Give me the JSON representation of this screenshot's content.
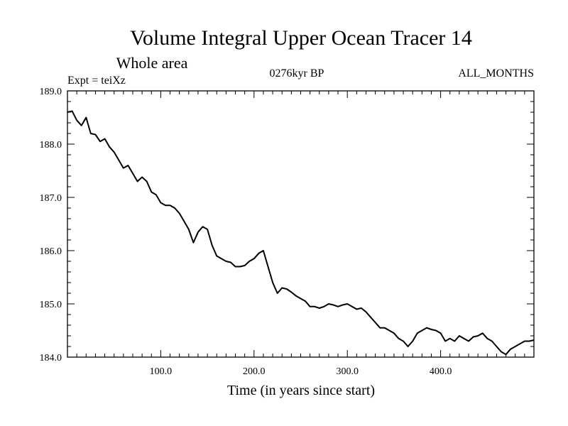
{
  "chart_data": {
    "type": "line",
    "title": "Volume Integral Upper Ocean Tracer 14",
    "subtitle": "Whole area",
    "annotations": {
      "left": "Expt = teiXz",
      "center": "0276kyr BP",
      "right": "ALL_MONTHS"
    },
    "xlabel": "Time (in years since start)",
    "ylabel": "",
    "xlim": [
      0,
      500
    ],
    "ylim": [
      184.0,
      189.0
    ],
    "x_ticks": [
      100,
      200,
      300,
      400
    ],
    "x_tick_labels": [
      "100.0",
      "200.0",
      "300.0",
      "400.0"
    ],
    "y_ticks": [
      184,
      185,
      186,
      187,
      188,
      189
    ],
    "y_tick_labels": [
      "184.0",
      "185.0",
      "186.0",
      "187.0",
      "188.0",
      "189.0"
    ],
    "grid": false,
    "series": [
      {
        "x": [
          0,
          5,
          10,
          15,
          20,
          25,
          30,
          35,
          40,
          45,
          50,
          55,
          60,
          65,
          70,
          75,
          80,
          85,
          90,
          95,
          100,
          105,
          110,
          115,
          120,
          125,
          130,
          135,
          140,
          145,
          150,
          155,
          160,
          165,
          170,
          175,
          180,
          185,
          190,
          195,
          200,
          205,
          210,
          215,
          220,
          225,
          230,
          235,
          240,
          245,
          250,
          255,
          260,
          265,
          270,
          275,
          280,
          285,
          290,
          295,
          300,
          305,
          310,
          315,
          320,
          325,
          330,
          335,
          340,
          345,
          350,
          355,
          360,
          365,
          370,
          375,
          380,
          385,
          390,
          395,
          400,
          405,
          410,
          415,
          420,
          425,
          430,
          435,
          440,
          445,
          450,
          455,
          460,
          465,
          470,
          475,
          480,
          485,
          490,
          495,
          500
        ],
        "y": [
          188.6,
          188.62,
          188.45,
          188.35,
          188.5,
          188.2,
          188.18,
          188.05,
          188.1,
          187.95,
          187.85,
          187.7,
          187.55,
          187.6,
          187.45,
          187.3,
          187.38,
          187.3,
          187.1,
          187.05,
          186.9,
          186.85,
          186.85,
          186.8,
          186.7,
          186.55,
          186.4,
          186.15,
          186.35,
          186.45,
          186.4,
          186.1,
          185.9,
          185.85,
          185.8,
          185.78,
          185.7,
          185.7,
          185.72,
          185.8,
          185.85,
          185.95,
          186.0,
          185.7,
          185.4,
          185.2,
          185.3,
          185.28,
          185.22,
          185.15,
          185.1,
          185.05,
          184.95,
          184.95,
          184.92,
          184.95,
          185.0,
          184.98,
          184.95,
          184.98,
          185.0,
          184.95,
          184.9,
          184.92,
          184.85,
          184.75,
          184.65,
          184.55,
          184.55,
          184.5,
          184.45,
          184.35,
          184.3,
          184.2,
          184.3,
          184.45,
          184.5,
          184.55,
          184.52,
          184.5,
          184.45,
          184.3,
          184.35,
          184.3,
          184.4,
          184.35,
          184.3,
          184.38,
          184.4,
          184.45,
          184.35,
          184.3,
          184.2,
          184.1,
          184.05,
          184.15,
          184.2,
          184.25,
          184.3,
          184.3,
          184.32
        ]
      }
    ]
  }
}
